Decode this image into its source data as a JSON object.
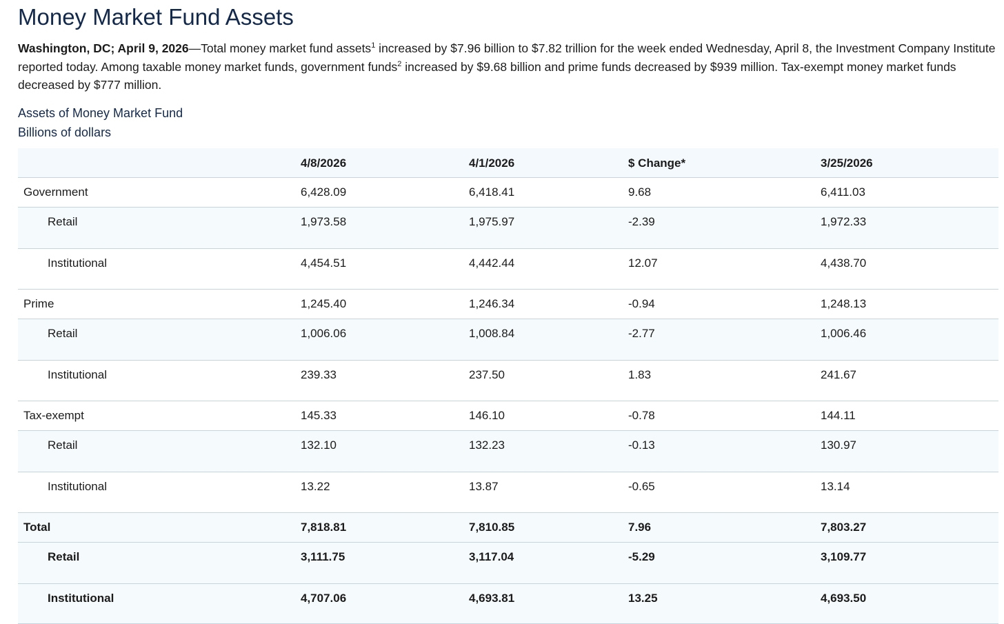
{
  "header": {
    "title": "Money Market Fund Assets"
  },
  "intro": {
    "dateline": "Washington, DC; April 9, 2026",
    "segments": [
      {
        "text": "—Total money market fund assets"
      },
      {
        "sup": "1"
      },
      {
        "text": " increased by $7.96 billion to $7.82 trillion for the week ended Wednesday, April 8, the Investment Company Institute reported today. Among taxable money market funds, government funds"
      },
      {
        "sup": "2"
      },
      {
        "text": " increased by $9.68 billion and prime funds decreased by $939 million. Tax-exempt money market funds decreased by $777 million."
      }
    ]
  },
  "table": {
    "caption": "Assets of Money Market Fund",
    "units": "Billions of dollars",
    "columns": [
      "4/8/2026",
      "4/1/2026",
      "$ Change*",
      "3/25/2026"
    ],
    "groups": [
      {
        "name": "Government",
        "values": [
          "6,428.09",
          "6,418.41",
          "9.68",
          "6,411.03"
        ],
        "sub": [
          {
            "name": "Retail",
            "values": [
              "1,973.58",
              "1,975.97",
              "-2.39",
              "1,972.33"
            ]
          },
          {
            "name": "Institutional",
            "values": [
              "4,454.51",
              "4,442.44",
              "12.07",
              "4,438.70"
            ]
          }
        ]
      },
      {
        "name": "Prime",
        "values": [
          "1,245.40",
          "1,246.34",
          "-0.94",
          "1,248.13"
        ],
        "sub": [
          {
            "name": "Retail",
            "values": [
              "1,006.06",
              "1,008.84",
              "-2.77",
              "1,006.46"
            ]
          },
          {
            "name": "Institutional",
            "values": [
              "239.33",
              "237.50",
              "1.83",
              "241.67"
            ]
          }
        ]
      },
      {
        "name": "Tax-exempt",
        "values": [
          "145.33",
          "146.10",
          "-0.78",
          "144.11"
        ],
        "sub": [
          {
            "name": "Retail",
            "values": [
              "132.10",
              "132.23",
              "-0.13",
              "130.97"
            ]
          },
          {
            "name": "Institutional",
            "values": [
              "13.22",
              "13.87",
              "-0.65",
              "13.14"
            ]
          }
        ]
      }
    ],
    "total": {
      "name": "Total",
      "values": [
        "7,818.81",
        "7,810.85",
        "7.96",
        "7,803.27"
      ],
      "sub": [
        {
          "name": "Retail",
          "values": [
            "3,111.75",
            "3,117.04",
            "-5.29",
            "3,109.77"
          ]
        },
        {
          "name": "Institutional",
          "values": [
            "4,707.06",
            "4,693.81",
            "13.25",
            "4,693.50"
          ]
        }
      ]
    }
  }
}
